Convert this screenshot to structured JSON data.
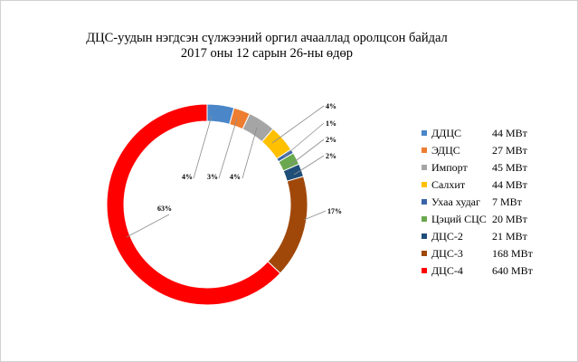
{
  "title_line1": "ДЦС-уудын нэгдсэн сүлжээний оргил ачааллад оролцсон байдал",
  "title_line2": "2017 оны 12 сарын 26-ны өдөр",
  "chart_data": {
    "type": "pie",
    "subtype": "donut",
    "title": "ДЦС-уудын нэгдсэн сүлжээний оргил ачааллад оролцсон байдал 2017 оны 12 сарын 26-ны өдөр",
    "unit": "МВт",
    "legend_position": "right",
    "slices": [
      {
        "name": "ДДЦС",
        "value": 44,
        "value_label": "44 МВт",
        "percent_label": "4%",
        "color": "#4a86c8"
      },
      {
        "name": "ЭДЦС",
        "value": 27,
        "value_label": "27 МВт",
        "percent_label": "3%",
        "color": "#ed7d31"
      },
      {
        "name": "Импорт",
        "value": 45,
        "value_label": "45 МВт",
        "percent_label": "4%",
        "color": "#a5a5a5"
      },
      {
        "name": "Салхит",
        "value": 44,
        "value_label": "44 МВт",
        "percent_label": "4%",
        "color": "#ffc000"
      },
      {
        "name": "Ухаа худаг",
        "value": 7,
        "value_label": "7 МВт",
        "percent_label": "1%",
        "color": "#3a64a8"
      },
      {
        "name": "Цэций СЦС",
        "value": 20,
        "value_label": "20 МВт",
        "percent_label": "2%",
        "color": "#6aa84f"
      },
      {
        "name": "ДЦС-2",
        "value": 21,
        "value_label": "21 МВт",
        "percent_label": "2%",
        "color": "#1f4e79"
      },
      {
        "name": "ДЦС-3",
        "value": 168,
        "value_label": "168 МВт",
        "percent_label": "17%",
        "color": "#a0480a"
      },
      {
        "name": "ДЦС-4",
        "value": 640,
        "value_label": "640 МВт",
        "percent_label": "63%",
        "color": "#ff0000"
      }
    ]
  }
}
